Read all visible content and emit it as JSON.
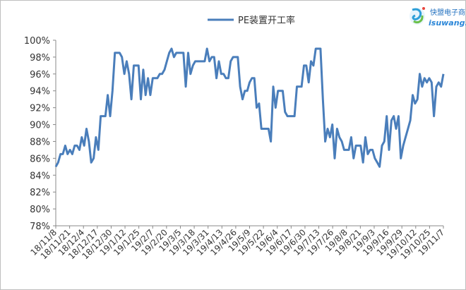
{
  "logo": {
    "cn": "快盟电子商",
    "en": "isuwang.c"
  },
  "chart_data": {
    "type": "line",
    "title": "",
    "xlabel": "",
    "ylabel": "",
    "ylim": [
      78,
      100
    ],
    "yticks": [
      "78%",
      "80%",
      "82%",
      "84%",
      "86%",
      "88%",
      "90%",
      "92%",
      "94%",
      "96%",
      "98%",
      "100%"
    ],
    "xticks": [
      "18/11/8",
      "18/11/21",
      "18/12/4",
      "18/12/17",
      "18/12/30",
      "19/1/12",
      "19/1/25",
      "19/2/7",
      "19/2/20",
      "19/3/5",
      "19/3/18",
      "19/3/31",
      "19/4/13",
      "19/4/26",
      "19/5/9",
      "19/5/22",
      "19/6/4",
      "19/6/17",
      "19/6/30",
      "19/7/13",
      "19/7/26",
      "19/8/8",
      "19/8/21",
      "19/9/3",
      "19/9/16",
      "19/9/29",
      "19/10/12",
      "19/10/25",
      "19/11/7"
    ],
    "legend_position": "top-center",
    "series": [
      {
        "name": "PE装置开工率",
        "color": "#4a7ebb",
        "values": [
          [
            0,
            85.0
          ],
          [
            1,
            85.5
          ],
          [
            2,
            86.5
          ],
          [
            3,
            86.5
          ],
          [
            4,
            87.5
          ],
          [
            5,
            86.5
          ],
          [
            6,
            87.0
          ],
          [
            7,
            86.5
          ],
          [
            8,
            87.5
          ],
          [
            9,
            87.5
          ],
          [
            10,
            87.0
          ],
          [
            11,
            88.5
          ],
          [
            12,
            87.5
          ],
          [
            13,
            89.5
          ],
          [
            14,
            88.0
          ],
          [
            15,
            85.5
          ],
          [
            16,
            86.0
          ],
          [
            17,
            88.5
          ],
          [
            18,
            87.0
          ],
          [
            19,
            91.0
          ],
          [
            20,
            91.0
          ],
          [
            21,
            91.0
          ],
          [
            22,
            93.5
          ],
          [
            23,
            91.0
          ],
          [
            24,
            94.0
          ],
          [
            25,
            98.5
          ],
          [
            26,
            98.5
          ],
          [
            27,
            98.5
          ],
          [
            28,
            98.0
          ],
          [
            29,
            96.0
          ],
          [
            30,
            97.5
          ],
          [
            31,
            96.0
          ],
          [
            32,
            93.0
          ],
          [
            33,
            97.0
          ],
          [
            34,
            97.0
          ],
          [
            35,
            97.0
          ],
          [
            36,
            93.0
          ],
          [
            37,
            96.5
          ],
          [
            38,
            93.5
          ],
          [
            39,
            95.5
          ],
          [
            40,
            93.5
          ],
          [
            41,
            95.5
          ],
          [
            42,
            95.5
          ],
          [
            43,
            95.5
          ],
          [
            44,
            96.0
          ],
          [
            45,
            96.0
          ],
          [
            46,
            96.5
          ],
          [
            47,
            97.5
          ],
          [
            48,
            98.5
          ],
          [
            49,
            99.0
          ],
          [
            50,
            98.0
          ],
          [
            51,
            98.5
          ],
          [
            52,
            98.5
          ],
          [
            53,
            98.5
          ],
          [
            54,
            98.5
          ],
          [
            55,
            94.5
          ],
          [
            56,
            98.5
          ],
          [
            57,
            96.0
          ],
          [
            58,
            97.0
          ],
          [
            59,
            97.5
          ],
          [
            60,
            97.5
          ],
          [
            61,
            97.5
          ],
          [
            62,
            97.5
          ],
          [
            63,
            97.5
          ],
          [
            64,
            99.0
          ],
          [
            65,
            97.5
          ],
          [
            66,
            98.0
          ],
          [
            67,
            98.0
          ],
          [
            68,
            95.5
          ],
          [
            69,
            97.5
          ],
          [
            70,
            96.0
          ],
          [
            71,
            96.0
          ],
          [
            72,
            95.5
          ],
          [
            73,
            95.5
          ],
          [
            74,
            97.5
          ],
          [
            75,
            98.0
          ],
          [
            76,
            98.0
          ],
          [
            77,
            98.0
          ],
          [
            78,
            94.5
          ],
          [
            79,
            93.0
          ],
          [
            80,
            94.0
          ],
          [
            81,
            94.0
          ],
          [
            82,
            95.0
          ],
          [
            83,
            95.5
          ],
          [
            84,
            95.5
          ],
          [
            85,
            92.0
          ],
          [
            86,
            92.5
          ],
          [
            87,
            89.5
          ],
          [
            88,
            89.5
          ],
          [
            89,
            89.5
          ],
          [
            90,
            89.5
          ],
          [
            91,
            88.0
          ],
          [
            92,
            94.5
          ],
          [
            93,
            92.0
          ],
          [
            94,
            94.0
          ],
          [
            95,
            94.0
          ],
          [
            96,
            94.0
          ],
          [
            97,
            91.5
          ],
          [
            98,
            91.0
          ],
          [
            99,
            91.0
          ],
          [
            100,
            91.0
          ],
          [
            101,
            91.0
          ],
          [
            102,
            94.5
          ],
          [
            103,
            94.5
          ],
          [
            104,
            94.5
          ],
          [
            105,
            97.0
          ],
          [
            106,
            97.0
          ],
          [
            107,
            95.0
          ],
          [
            108,
            97.5
          ],
          [
            109,
            97.0
          ],
          [
            110,
            99.0
          ],
          [
            111,
            99.0
          ],
          [
            112,
            99.0
          ],
          [
            113,
            93.0
          ],
          [
            114,
            88.0
          ],
          [
            115,
            89.5
          ],
          [
            116,
            88.5
          ],
          [
            117,
            90.0
          ],
          [
            118,
            86.0
          ],
          [
            119,
            89.5
          ],
          [
            120,
            88.5
          ],
          [
            121,
            88.0
          ],
          [
            122,
            87.0
          ],
          [
            123,
            87.0
          ],
          [
            124,
            87.0
          ],
          [
            125,
            88.5
          ],
          [
            126,
            86.0
          ],
          [
            127,
            87.5
          ],
          [
            128,
            87.5
          ],
          [
            129,
            87.5
          ],
          [
            130,
            85.5
          ],
          [
            131,
            88.5
          ],
          [
            132,
            86.5
          ],
          [
            133,
            87.0
          ],
          [
            134,
            87.0
          ],
          [
            135,
            86.0
          ],
          [
            136,
            85.5
          ],
          [
            137,
            85.0
          ],
          [
            138,
            87.5
          ],
          [
            139,
            88.0
          ],
          [
            140,
            91.0
          ],
          [
            141,
            87.0
          ],
          [
            142,
            90.5
          ],
          [
            143,
            91.0
          ],
          [
            144,
            89.5
          ],
          [
            145,
            91.0
          ],
          [
            146,
            86.0
          ],
          [
            147,
            87.5
          ],
          [
            148,
            88.5
          ],
          [
            149,
            89.5
          ],
          [
            150,
            90.5
          ],
          [
            151,
            93.5
          ],
          [
            152,
            92.5
          ],
          [
            153,
            93.0
          ],
          [
            154,
            96.0
          ],
          [
            155,
            94.5
          ],
          [
            156,
            95.5
          ],
          [
            157,
            95.0
          ],
          [
            158,
            95.5
          ],
          [
            159,
            95.0
          ],
          [
            160,
            91.0
          ],
          [
            161,
            94.5
          ],
          [
            162,
            95.0
          ],
          [
            163,
            94.5
          ],
          [
            164,
            96.0
          ]
        ]
      }
    ]
  }
}
